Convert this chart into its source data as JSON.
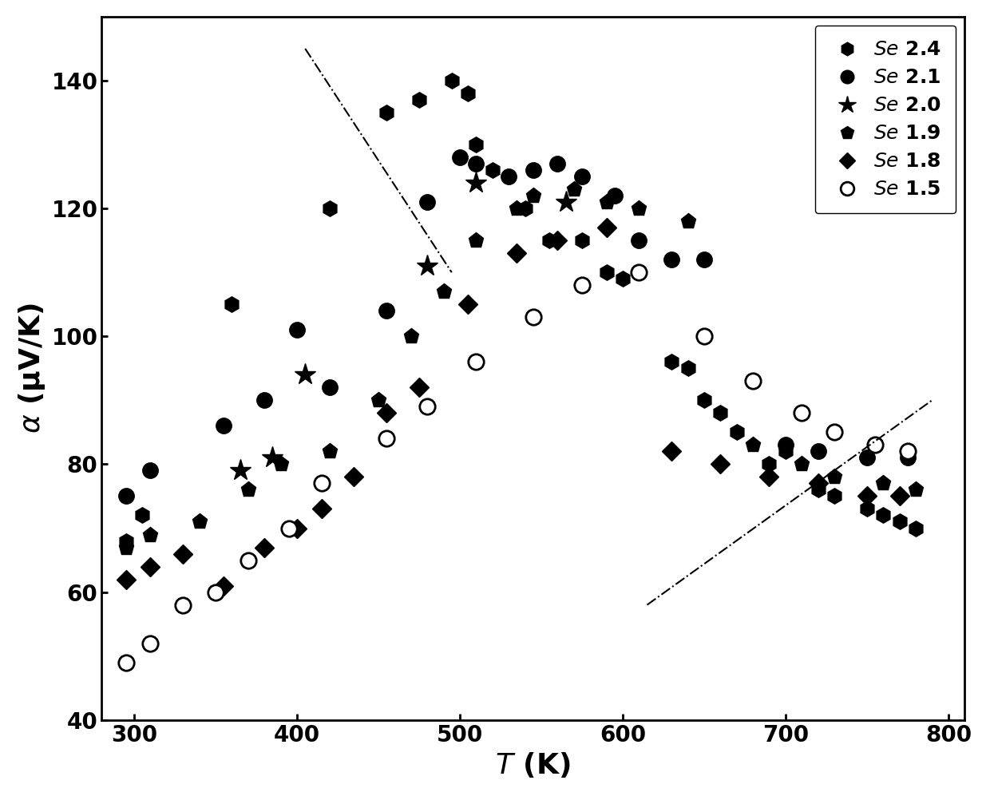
{
  "se24": {
    "T": [
      295,
      305,
      360,
      420,
      455,
      475,
      495,
      505,
      510,
      520,
      540,
      555,
      575,
      590,
      600,
      630,
      640,
      650,
      660,
      670,
      690,
      700,
      720,
      730,
      750,
      760,
      770,
      780
    ],
    "alpha": [
      68,
      72,
      105,
      120,
      135,
      137,
      140,
      138,
      130,
      126,
      120,
      115,
      115,
      110,
      109,
      96,
      95,
      90,
      88,
      85,
      80,
      82,
      76,
      75,
      73,
      72,
      71,
      70
    ]
  },
  "se21": {
    "T": [
      295,
      310,
      355,
      380,
      400,
      420,
      455,
      480,
      500,
      510,
      530,
      545,
      560,
      575,
      595,
      610,
      630,
      650,
      700,
      720,
      750,
      775
    ],
    "alpha": [
      75,
      79,
      86,
      90,
      101,
      92,
      104,
      121,
      128,
      127,
      125,
      126,
      127,
      125,
      122,
      115,
      112,
      112,
      83,
      82,
      81,
      81
    ]
  },
  "se20": {
    "T": [
      365,
      385,
      405,
      480,
      510,
      565
    ],
    "alpha": [
      79,
      81,
      94,
      111,
      124,
      121
    ]
  },
  "se19": {
    "T": [
      295,
      310,
      340,
      370,
      390,
      420,
      450,
      470,
      490,
      510,
      535,
      545,
      570,
      590,
      610,
      640,
      680,
      710,
      730,
      760,
      780
    ],
    "alpha": [
      67,
      69,
      71,
      76,
      80,
      82,
      90,
      100,
      107,
      115,
      120,
      122,
      123,
      121,
      120,
      118,
      83,
      80,
      78,
      77,
      76
    ]
  },
  "se18": {
    "T": [
      295,
      310,
      330,
      355,
      380,
      400,
      415,
      435,
      455,
      475,
      505,
      535,
      560,
      590,
      630,
      660,
      690,
      720,
      750,
      770
    ],
    "alpha": [
      62,
      64,
      66,
      61,
      67,
      70,
      73,
      78,
      88,
      92,
      105,
      113,
      115,
      117,
      82,
      80,
      78,
      77,
      75,
      75
    ]
  },
  "se15": {
    "T": [
      295,
      310,
      330,
      350,
      370,
      395,
      415,
      455,
      480,
      510,
      545,
      575,
      610,
      650,
      680,
      710,
      730,
      755,
      775
    ],
    "alpha": [
      49,
      52,
      58,
      60,
      65,
      70,
      77,
      84,
      89,
      96,
      103,
      108,
      110,
      100,
      93,
      88,
      85,
      83,
      82
    ]
  },
  "dash_line1": {
    "x": [
      405,
      495
    ],
    "y": [
      145,
      110
    ]
  },
  "dash_line2": {
    "x": [
      615,
      790
    ],
    "y": [
      58,
      90
    ]
  },
  "xlim": [
    280,
    810
  ],
  "ylim": [
    40,
    150
  ],
  "xticks": [
    300,
    400,
    500,
    600,
    700,
    800
  ],
  "yticks": [
    40,
    60,
    80,
    100,
    120,
    140
  ],
  "xlabel": "T (K)",
  "ylabel": "α (μV/K)",
  "legend_labels": [
    "Se 2.4",
    "Se 2.1",
    "Se 2.0",
    "Se 1.9",
    "Se 1.8",
    "Se 1.5"
  ]
}
